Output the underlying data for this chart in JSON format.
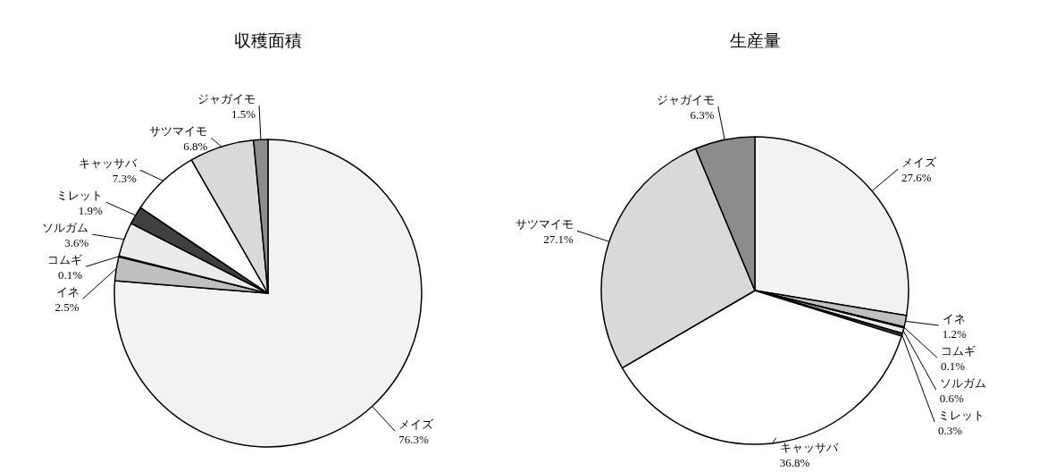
{
  "chart_data": [
    {
      "type": "pie",
      "title": "収穫面積",
      "categories": [
        "メイズ",
        "イネ",
        "コムギ",
        "ソルガム",
        "ミレット",
        "キャッサバ",
        "サツマイモ",
        "ジャガイモ"
      ],
      "values": [
        76.3,
        2.5,
        0.1,
        3.6,
        1.9,
        7.3,
        6.8,
        1.5
      ],
      "value_labels": [
        "76.3%",
        "2.5%",
        "0.1%",
        "3.6%",
        "1.9%",
        "7.3%",
        "6.8%",
        "1.5%"
      ],
      "colors": [
        "#f2f2f2",
        "#c0c0c0",
        "#ffffff",
        "#ebebeb",
        "#404040",
        "#ffffff",
        "#d9d9d9",
        "#8c8c8c"
      ]
    },
    {
      "type": "pie",
      "title": "生産量",
      "categories": [
        "メイズ",
        "イネ",
        "コムギ",
        "ソルガム",
        "ミレット",
        "キャッサバ",
        "サツマイモ",
        "ジャガイモ"
      ],
      "values": [
        27.6,
        1.2,
        0.1,
        0.6,
        0.3,
        36.8,
        27.1,
        6.3
      ],
      "value_labels": [
        "27.6%",
        "1.2%",
        "0.1%",
        "0.6%",
        "0.3%",
        "36.8%",
        "27.1%",
        "6.3%"
      ],
      "colors": [
        "#f2f2f2",
        "#c0c0c0",
        "#ffffff",
        "#ebebeb",
        "#404040",
        "#ffffff",
        "#d9d9d9",
        "#8c8c8c"
      ]
    }
  ]
}
